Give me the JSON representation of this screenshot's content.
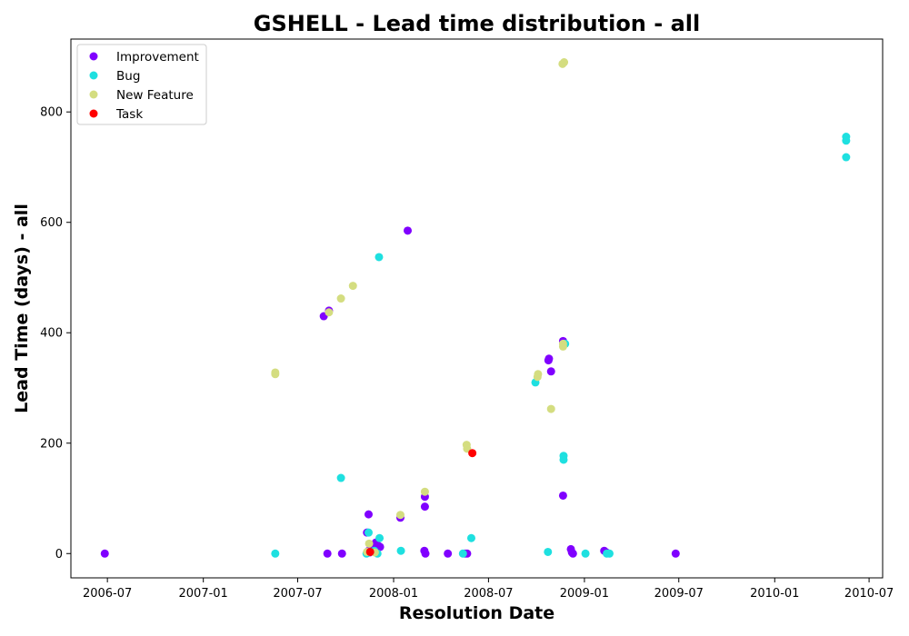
{
  "chart_data": {
    "type": "scatter",
    "title": "GSHELL - Lead time distribution - all",
    "xlabel": "Resolution Date",
    "ylabel": "Lead Time (days) - all",
    "x_ticks": [
      "2006-07",
      "2007-01",
      "2007-07",
      "2008-01",
      "2008-07",
      "2009-01",
      "2009-07",
      "2010-01",
      "2010-07"
    ],
    "y_ticks": [
      "0",
      "200",
      "400",
      "600",
      "800"
    ],
    "xlim": [
      "2006-04-22",
      "2010-07-27"
    ],
    "ylim": [
      -44,
      932
    ],
    "legend_position": "top-left",
    "grid": false,
    "series": [
      {
        "name": "Improvement",
        "color": "#8000ff",
        "points": [
          {
            "x": "2006-06-26",
            "y": 0
          },
          {
            "x": "2007-08-20",
            "y": 430
          },
          {
            "x": "2007-08-27",
            "y": 0
          },
          {
            "x": "2007-08-30",
            "y": 440
          },
          {
            "x": "2007-09-24",
            "y": 0
          },
          {
            "x": "2007-11-11",
            "y": 38
          },
          {
            "x": "2007-11-14",
            "y": 71
          },
          {
            "x": "2007-11-14",
            "y": 5
          },
          {
            "x": "2007-11-16",
            "y": 2
          },
          {
            "x": "2007-11-20",
            "y": 10
          },
          {
            "x": "2007-11-24",
            "y": 15
          },
          {
            "x": "2007-11-28",
            "y": 20
          },
          {
            "x": "2007-12-03",
            "y": 14
          },
          {
            "x": "2007-12-06",
            "y": 12
          },
          {
            "x": "2008-01-14",
            "y": 65
          },
          {
            "x": "2008-01-28",
            "y": 585
          },
          {
            "x": "2008-03-01",
            "y": 103
          },
          {
            "x": "2008-03-01",
            "y": 85
          },
          {
            "x": "2008-02-29",
            "y": 5
          },
          {
            "x": "2008-03-02",
            "y": 0
          },
          {
            "x": "2008-04-14",
            "y": 0
          },
          {
            "x": "2008-05-17",
            "y": 0
          },
          {
            "x": "2008-05-21",
            "y": 0
          },
          {
            "x": "2008-10-24",
            "y": 350
          },
          {
            "x": "2008-10-25",
            "y": 353
          },
          {
            "x": "2008-10-29",
            "y": 330
          },
          {
            "x": "2008-11-21",
            "y": 385
          },
          {
            "x": "2008-11-21",
            "y": 105
          },
          {
            "x": "2008-12-06",
            "y": 8
          },
          {
            "x": "2008-12-08",
            "y": 2
          },
          {
            "x": "2008-12-10",
            "y": 0
          },
          {
            "x": "2009-02-08",
            "y": 5
          },
          {
            "x": "2009-02-12",
            "y": 2
          },
          {
            "x": "2009-06-25",
            "y": 0
          }
        ]
      },
      {
        "name": "Bug",
        "color": "#1ee0e0",
        "points": [
          {
            "x": "2007-05-19",
            "y": 0
          },
          {
            "x": "2007-09-22",
            "y": 137
          },
          {
            "x": "2007-11-10",
            "y": 0
          },
          {
            "x": "2007-11-14",
            "y": 38
          },
          {
            "x": "2007-11-25",
            "y": 5
          },
          {
            "x": "2007-12-01",
            "y": 0
          },
          {
            "x": "2007-12-05",
            "y": 28
          },
          {
            "x": "2007-12-04",
            "y": 537
          },
          {
            "x": "2008-01-15",
            "y": 5
          },
          {
            "x": "2008-05-13",
            "y": 0
          },
          {
            "x": "2008-05-29",
            "y": 28
          },
          {
            "x": "2008-09-29",
            "y": 310
          },
          {
            "x": "2008-10-23",
            "y": 3
          },
          {
            "x": "2008-11-22",
            "y": 177
          },
          {
            "x": "2008-11-22",
            "y": 170
          },
          {
            "x": "2008-11-25",
            "y": 380
          },
          {
            "x": "2009-01-03",
            "y": 0
          },
          {
            "x": "2009-02-13",
            "y": 0
          },
          {
            "x": "2009-02-18",
            "y": 0
          },
          {
            "x": "2010-05-18",
            "y": 755
          },
          {
            "x": "2010-05-18",
            "y": 748
          },
          {
            "x": "2010-05-18",
            "y": 718
          }
        ]
      },
      {
        "name": "New Feature",
        "color": "#d4dd80",
        "points": [
          {
            "x": "2007-05-19",
            "y": 328
          },
          {
            "x": "2007-05-19",
            "y": 325
          },
          {
            "x": "2007-08-30",
            "y": 437
          },
          {
            "x": "2007-09-22",
            "y": 462
          },
          {
            "x": "2007-10-15",
            "y": 485
          },
          {
            "x": "2007-11-11",
            "y": 3
          },
          {
            "x": "2007-11-15",
            "y": 18
          },
          {
            "x": "2007-11-26",
            "y": 2
          },
          {
            "x": "2008-01-14",
            "y": 70
          },
          {
            "x": "2008-03-01",
            "y": 112
          },
          {
            "x": "2008-05-20",
            "y": 197
          },
          {
            "x": "2008-05-21",
            "y": 190
          },
          {
            "x": "2008-10-03",
            "y": 320
          },
          {
            "x": "2008-10-04",
            "y": 325
          },
          {
            "x": "2008-10-29",
            "y": 262
          },
          {
            "x": "2008-11-21",
            "y": 380
          },
          {
            "x": "2008-11-21",
            "y": 375
          },
          {
            "x": "2008-11-20",
            "y": 887
          },
          {
            "x": "2008-11-23",
            "y": 890
          }
        ]
      },
      {
        "name": "Task",
        "color": "#ff0000",
        "points": [
          {
            "x": "2007-11-17",
            "y": 3
          },
          {
            "x": "2008-05-31",
            "y": 182
          }
        ]
      }
    ]
  }
}
